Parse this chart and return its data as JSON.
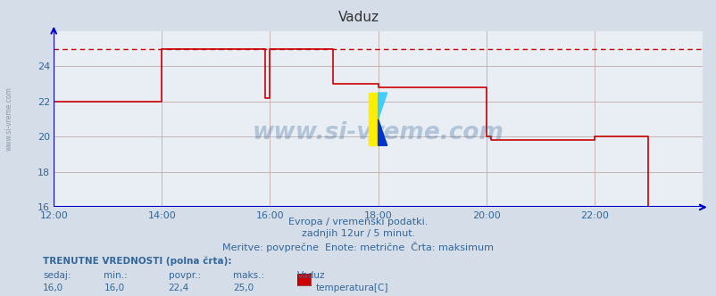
{
  "title": "Vaduz",
  "bg_color": "#d4dde8",
  "plot_bg_color": "#e8eef4",
  "grid_color": "#c8b4b4",
  "line_color": "#cc0000",
  "dashed_line_color": "#cc0000",
  "axis_color": "#0000cc",
  "text_color": "#336699",
  "title_color": "#333333",
  "xmin": 0,
  "xmax": 144,
  "ymin": 16,
  "ymax": 26,
  "yticks": [
    16,
    18,
    20,
    22,
    24
  ],
  "xtick_labels": [
    "12:00",
    "14:00",
    "16:00",
    "18:00",
    "20:00",
    "22:00"
  ],
  "xtick_positions": [
    0,
    24,
    48,
    72,
    96,
    120
  ],
  "subtitle1": "Evropa / vremenski podatki.",
  "subtitle2": "zadnjih 12ur / 5 minut.",
  "subtitle3": "Meritve: povprečne  Enote: metrične  Črta: maksimum",
  "label_trenutne": "TRENUTNE VREDNOSTI (polna črta):",
  "label_sedaj": "sedaj:",
  "label_min": "min.:",
  "label_povpr": "povpr.:",
  "label_maks": "maks.:",
  "label_vaduz": "Vaduz",
  "val_sedaj": "16,0",
  "val_min": "16,0",
  "val_povpr": "22,4",
  "val_maks": "25,0",
  "label_temperatura": "temperatura[C]",
  "watermark": "www.si-vreme.com",
  "step_x": [
    0,
    24,
    24,
    47,
    47,
    48,
    48,
    62,
    62,
    72,
    72,
    96,
    96,
    97,
    97,
    120,
    120,
    132,
    132,
    133,
    133,
    144
  ],
  "step_y": [
    22,
    22,
    25,
    25,
    22.2,
    22.2,
    25,
    25,
    23,
    23,
    22.8,
    22.8,
    20,
    20,
    19.8,
    19.8,
    20,
    20,
    16,
    16,
    16,
    16
  ],
  "max_line_y": 25
}
